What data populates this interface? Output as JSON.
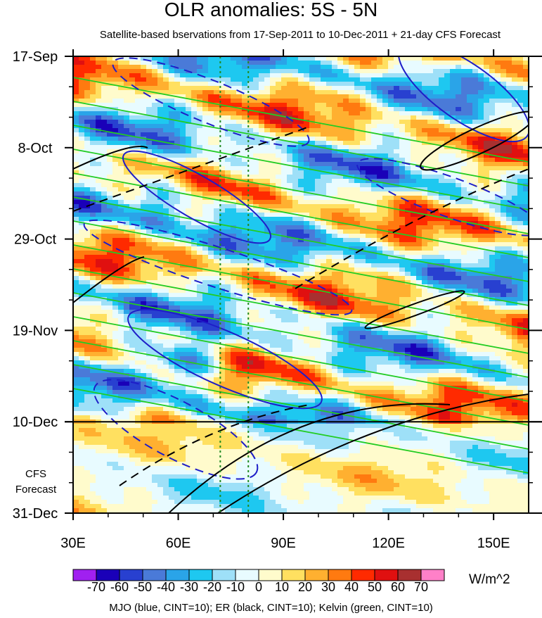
{
  "chart_data": {
    "type": "heatmap",
    "title": "OLR anomalies: 5S - 5N",
    "subtitle": "Satellite-based bservations from 17-Sep-2011 to 10-Dec-2011 + 21-day CFS Forecast",
    "xlabel": "",
    "ylabel": "",
    "x_ticks": [
      "30E",
      "60E",
      "90E",
      "120E",
      "150E"
    ],
    "x_tick_values": [
      30,
      60,
      90,
      120,
      150
    ],
    "xlim": [
      30,
      160
    ],
    "y_ticks": [
      "17-Sep",
      "8-Oct",
      "29-Oct",
      "19-Nov",
      "10-Dec",
      "31-Dec"
    ],
    "y_tick_values": [
      "2011-09-17",
      "2011-10-08",
      "2011-10-29",
      "2011-11-19",
      "2011-12-10",
      "2011-12-31"
    ],
    "ylim": [
      "2011-09-17",
      "2011-12-31"
    ],
    "observation_end": "10-Dec",
    "forecast_label_line1": "CFS",
    "forecast_label_line2": "Forecast",
    "reference_longitudes": [
      72,
      80
    ],
    "colorbar": {
      "levels": [
        "-70",
        "-60",
        "-50",
        "-40",
        "-30",
        "-20",
        "-10",
        "0",
        "10",
        "20",
        "30",
        "40",
        "50",
        "60",
        "70"
      ],
      "colors": [
        "#a020f0",
        "#1a00b8",
        "#2840d0",
        "#4a7ad8",
        "#2aa4e8",
        "#1ec8f0",
        "#9ee0f8",
        "#e8fbff",
        "#fffbcc",
        "#ffe060",
        "#ffb030",
        "#ff7a10",
        "#ff2a00",
        "#e01010",
        "#a83030",
        "#ff80c8"
      ],
      "units": "W/m^2"
    },
    "contours": "MJO (blue, CINT=10); ER (black, CINT=10); Kelvin (green, CINT=10)",
    "series": [
      {
        "name": "MJO",
        "color": "#1e1ec8"
      },
      {
        "name": "ER",
        "color": "#000000"
      },
      {
        "name": "Kelvin",
        "color": "#22cc22"
      }
    ]
  }
}
